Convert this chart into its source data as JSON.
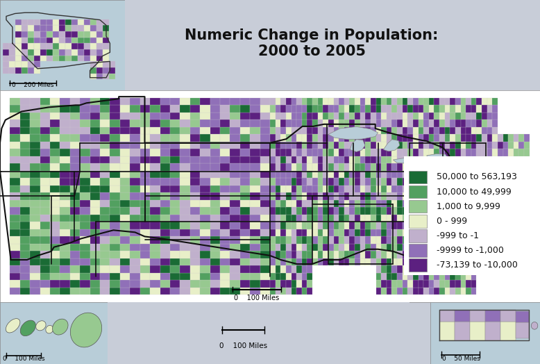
{
  "title": "Numeric Change in Population:\n2000 to 2005",
  "title_fontsize": 15,
  "title_fontweight": "bold",
  "top_bg": "#c8cdd8",
  "map_bg": "#ffffff",
  "inset_bg": "#b8cdd8",
  "legend_labels": [
    "50,000 to 563,193",
    "10,000 to 49,999",
    "1,000 to 9,999",
    "0 - 999",
    "-999 to -1",
    "-9999 to -1,000",
    "-73,139 to -10,000"
  ],
  "legend_colors": [
    "#1a6b35",
    "#52a060",
    "#97c990",
    "#e8efc8",
    "#c0b0cc",
    "#9070b8",
    "#5c2080"
  ],
  "water_color": "#b8cdd8",
  "legend_fontsize": 9
}
